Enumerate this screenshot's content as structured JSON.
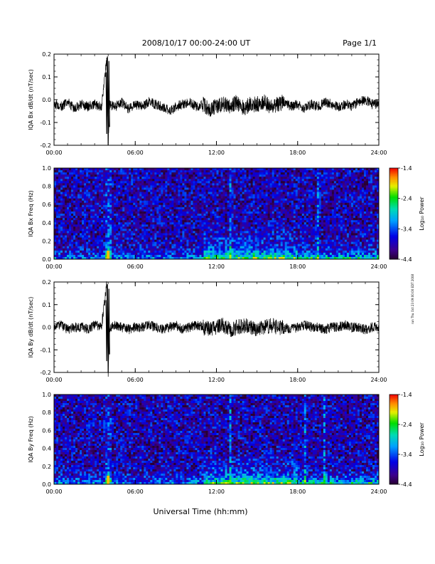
{
  "header": {
    "title": "2008/10/17  00:00-24:00 UT",
    "page": "Page 1/1"
  },
  "side_note": "run Thu Oct 23 09:00:00 EDT 2008",
  "chart_data": [
    {
      "id": "bx_timeseries",
      "type": "line",
      "ylabel": "IQA Bx dB/dt (nT/sec)",
      "ylim": [
        -0.2,
        0.2
      ],
      "yticks": [
        "0.2",
        "0.1",
        "0.0",
        "-0.1",
        "-0.2"
      ],
      "ytick_values": [
        0.2,
        0.1,
        0.0,
        -0.1,
        -0.2
      ],
      "xlim": [
        0,
        24
      ],
      "xticks": [
        "00:00",
        "06:00",
        "12:00",
        "18:00",
        "24:00"
      ],
      "xtick_values": [
        0,
        6,
        12,
        18,
        24
      ],
      "series": [
        {
          "x": [
            0,
            0.5,
            1,
            1.5,
            2,
            2.5,
            3,
            3.5,
            3.9,
            4.0,
            4.1,
            4.5,
            5,
            5.5,
            6,
            6.5,
            7,
            7.5,
            8,
            8.5,
            9,
            9.5,
            10,
            10.5,
            11,
            11.5,
            12,
            12.5,
            13,
            13.5,
            14,
            14.5,
            15,
            15.5,
            16,
            16.5,
            17,
            17.5,
            18,
            18.5,
            19,
            19.5,
            20,
            20.5,
            21,
            21.5,
            22,
            22.5,
            23,
            23.5,
            24
          ],
          "y": [
            -0.02,
            -0.03,
            -0.01,
            -0.04,
            -0.02,
            -0.03,
            -0.02,
            -0.03,
            0.18,
            -0.19,
            -0.02,
            -0.03,
            -0.01,
            -0.04,
            -0.02,
            -0.03,
            -0.01,
            -0.02,
            -0.03,
            -0.05,
            -0.03,
            -0.02,
            -0.01,
            -0.03,
            -0.02,
            -0.04,
            -0.03,
            -0.02,
            -0.03,
            -0.01,
            -0.04,
            -0.02,
            -0.02,
            -0.01,
            -0.03,
            -0.02,
            -0.01,
            -0.03,
            -0.02,
            -0.04,
            -0.02,
            -0.03,
            -0.01,
            -0.02,
            -0.03,
            -0.02,
            -0.03,
            -0.01,
            0.0,
            -0.02,
            -0.02
          ]
        }
      ]
    },
    {
      "id": "bx_spectrogram",
      "type": "heatmap",
      "ylabel": "IQA Bx Freq (Hz)",
      "ylim": [
        0.0,
        1.0
      ],
      "yticks": [
        "1.0",
        "0.8",
        "0.6",
        "0.4",
        "0.2",
        "0.0"
      ],
      "ytick_values": [
        1.0,
        0.8,
        0.6,
        0.4,
        0.2,
        0.0
      ],
      "xlim": [
        0,
        24
      ],
      "xticks": [
        "00:00",
        "06:00",
        "12:00",
        "18:00",
        "24:00"
      ],
      "xtick_values": [
        0,
        6,
        12,
        18,
        24
      ],
      "colorbar": {
        "label": "Log₁₀ Power",
        "range": [
          -4.4,
          -1.4
        ],
        "ticks": [
          "-1.4",
          "-2.4",
          "-3.4",
          "-4.4"
        ],
        "tick_values": [
          -1.4,
          -2.4,
          -3.4,
          -4.4
        ]
      },
      "features": {
        "background_level": -3.9,
        "low_freq_band_level": -2.8,
        "burst_time": 4.0,
        "vertical_lines": [
          13.0,
          19.5
        ]
      }
    },
    {
      "id": "by_timeseries",
      "type": "line",
      "ylabel": "IQA By dB/dt (nT/sec)",
      "ylim": [
        -0.2,
        0.2
      ],
      "yticks": [
        "0.2",
        "0.1",
        "0.0",
        "-0.1",
        "-0.2"
      ],
      "ytick_values": [
        0.2,
        0.1,
        0.0,
        -0.1,
        -0.2
      ],
      "xlim": [
        0,
        24
      ],
      "xticks": [
        "00:00",
        "06:00",
        "12:00",
        "18:00",
        "24:00"
      ],
      "xtick_values": [
        0,
        6,
        12,
        18,
        24
      ],
      "series": [
        {
          "x": [
            0,
            0.5,
            1,
            1.5,
            2,
            2.5,
            3,
            3.5,
            3.9,
            4.0,
            4.1,
            4.5,
            5,
            5.5,
            6,
            6.5,
            7,
            7.5,
            8,
            8.5,
            9,
            9.5,
            10,
            10.5,
            11,
            11.5,
            12,
            12.5,
            13,
            13.5,
            14,
            14.5,
            15,
            15.5,
            16,
            16.5,
            17,
            17.5,
            18,
            18.5,
            19,
            19.5,
            20,
            20.5,
            21,
            21.5,
            22,
            22.5,
            23,
            23.5,
            24
          ],
          "y": [
            0.0,
            0.01,
            -0.01,
            0.0,
            0.0,
            -0.01,
            0.01,
            0.0,
            0.2,
            -0.2,
            0.0,
            0.01,
            0.0,
            -0.01,
            0.0,
            0.0,
            0.01,
            0.0,
            -0.01,
            0.0,
            0.01,
            -0.01,
            0.0,
            0.01,
            0.0,
            -0.01,
            0.0,
            0.01,
            -0.01,
            0.0,
            0.01,
            0.0,
            -0.01,
            0.0,
            0.01,
            0.0,
            0.0,
            -0.01,
            0.0,
            0.01,
            0.0,
            0.0,
            -0.01,
            0.0,
            0.0,
            0.01,
            0.0,
            0.0,
            -0.01,
            0.0,
            0.0
          ]
        }
      ]
    },
    {
      "id": "by_spectrogram",
      "type": "heatmap",
      "ylabel": "IQA By Freq (Hz)",
      "ylim": [
        0.0,
        1.0
      ],
      "yticks": [
        "1.0",
        "0.8",
        "0.6",
        "0.4",
        "0.2",
        "0.0"
      ],
      "ytick_values": [
        1.0,
        0.8,
        0.6,
        0.4,
        0.2,
        0.0
      ],
      "xlim": [
        0,
        24
      ],
      "xticks": [
        "00:00",
        "06:00",
        "12:00",
        "18:00",
        "24:00"
      ],
      "xtick_values": [
        0,
        6,
        12,
        18,
        24
      ],
      "colorbar": {
        "label": "Log₁₀ Power",
        "range": [
          -4.4,
          -1.4
        ],
        "ticks": [
          "-1.4",
          "-2.4",
          "-3.4",
          "-4.4"
        ],
        "tick_values": [
          -1.4,
          -2.4,
          -3.4,
          -4.4
        ]
      },
      "features": {
        "background_level": -3.9,
        "low_freq_band_level": -2.9,
        "burst_time": 4.0,
        "vertical_lines": [
          13.0,
          18.5,
          20.0
        ]
      }
    }
  ],
  "xlabel": "Universal Time (hh:mm)"
}
